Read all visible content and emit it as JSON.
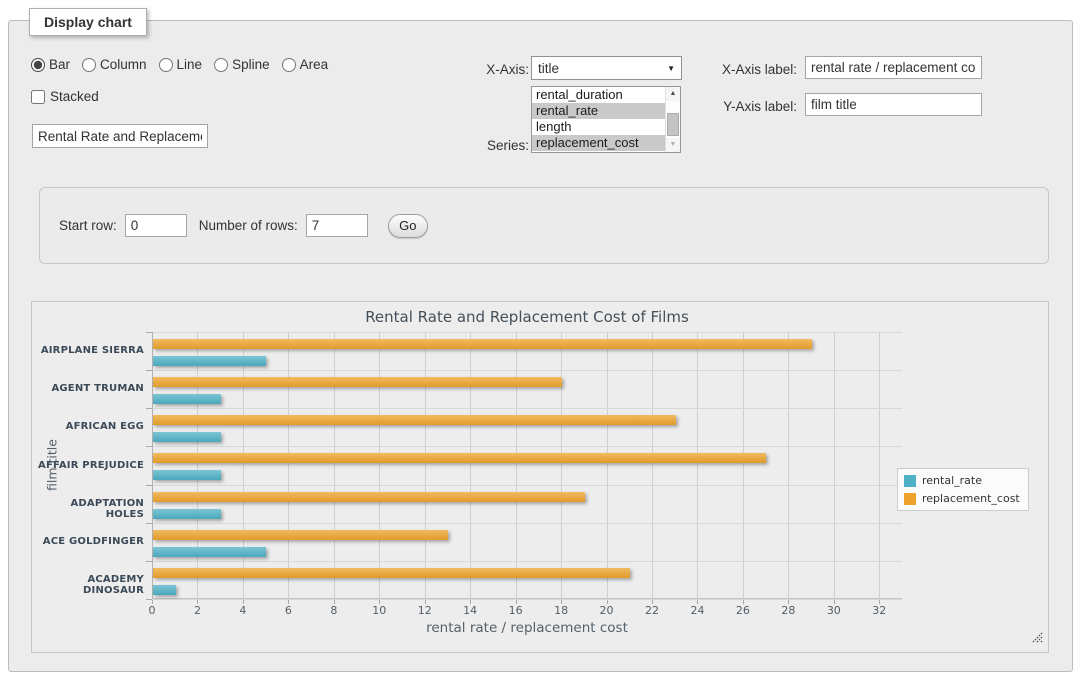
{
  "form": {
    "legend_title": "Display chart",
    "chart_types": [
      {
        "label": "Bar",
        "checked": true
      },
      {
        "label": "Column",
        "checked": false
      },
      {
        "label": "Line",
        "checked": false
      },
      {
        "label": "Spline",
        "checked": false
      },
      {
        "label": "Area",
        "checked": false
      }
    ],
    "stacked_label": "Stacked",
    "stacked_checked": false,
    "title_value": "Rental Rate and Replacement Cost of Films",
    "x_axis_label": "X-Axis:",
    "x_axis_value": "title",
    "series_label": "Series:",
    "series_options": [
      {
        "label": "rental_duration",
        "selected": false
      },
      {
        "label": "rental_rate",
        "selected": true
      },
      {
        "label": "length",
        "selected": false
      },
      {
        "label": "replacement_cost",
        "selected": true
      }
    ],
    "x_axis_field_label": "X-Axis label:",
    "x_axis_field_value": "rental rate / replacement cost",
    "y_axis_field_label": "Y-Axis label:",
    "y_axis_field_value": "film title"
  },
  "rows_panel": {
    "start_row_label": "Start row:",
    "start_row_value": "0",
    "num_rows_label": "Number of rows:",
    "num_rows_value": "7",
    "go_label": "Go"
  },
  "chart_data": {
    "type": "bar",
    "title": "Rental Rate and Replacement Cost of Films",
    "xlabel": "rental rate / replacement cost",
    "ylabel": "film title",
    "categories": [
      "AIRPLANE SIERRA",
      "AGENT TRUMAN",
      "AFRICAN EGG",
      "AFFAIR PREJUDICE",
      "ADAPTATION HOLES",
      "ACE GOLDFINGER",
      "ACADEMY DINOSAUR"
    ],
    "series": [
      {
        "name": "rental_rate",
        "color": "#4FB1C5",
        "values": [
          4.99,
          2.99,
          2.99,
          2.99,
          2.99,
          4.99,
          0.99
        ]
      },
      {
        "name": "replacement_cost",
        "color": "#EDA32C",
        "values": [
          28.99,
          17.99,
          22.99,
          26.99,
          18.99,
          12.99,
          20.99
        ]
      }
    ],
    "xlim": [
      0,
      33
    ],
    "tick_interval": 2,
    "tick_max": 32,
    "grid": true,
    "legend_position": "right"
  }
}
